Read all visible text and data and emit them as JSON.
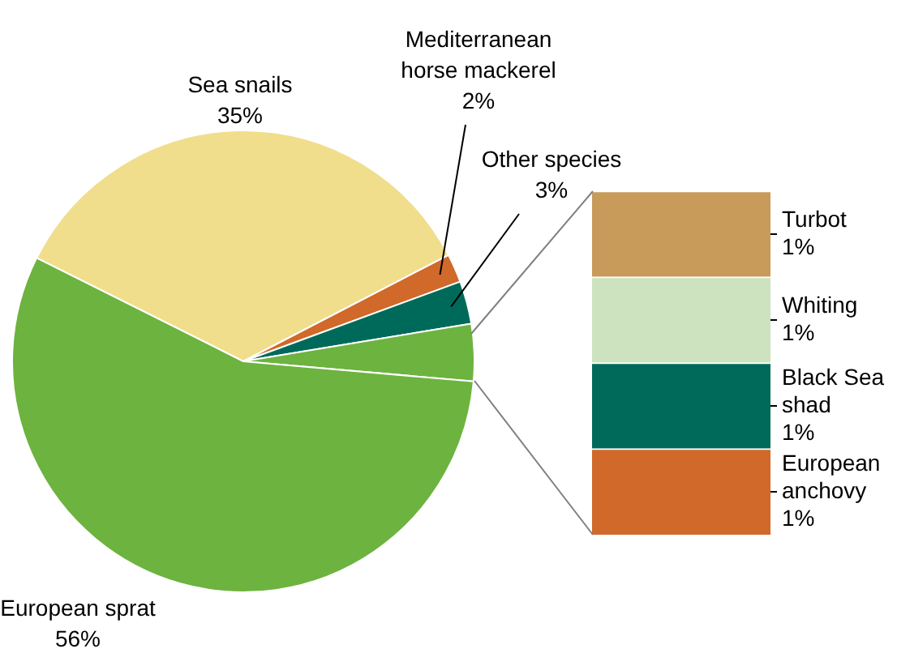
{
  "chart_data": [
    {
      "type": "pie",
      "categories": [
        "Sea snails",
        "Mediterranean horse mackerel",
        "Other species",
        null,
        "European sprat"
      ],
      "values": [
        35,
        2,
        3,
        4,
        56
      ],
      "colors": [
        "#f0de8c",
        "#d0692a",
        "#006a5a",
        "#6db33f",
        "#6db33f"
      ],
      "value_labels": [
        "35%",
        "2%",
        "3%",
        null,
        "56%"
      ]
    },
    {
      "type": "bar",
      "stacked": true,
      "categories": [
        null
      ],
      "series": [
        {
          "name": "European anchovy",
          "color": "#d0692a",
          "values": [
            1
          ],
          "value_labels": [
            "1%"
          ]
        },
        {
          "name": "Black Sea shad",
          "color": "#006a5a",
          "values": [
            1
          ],
          "value_labels": [
            "1%"
          ]
        },
        {
          "name": "Whiting",
          "color": "#cde2be",
          "values": [
            1
          ],
          "value_labels": [
            "1%"
          ]
        },
        {
          "name": "Turbot",
          "color": "#c89b5a",
          "values": [
            1
          ],
          "value_labels": [
            "1%"
          ]
        }
      ]
    }
  ]
}
